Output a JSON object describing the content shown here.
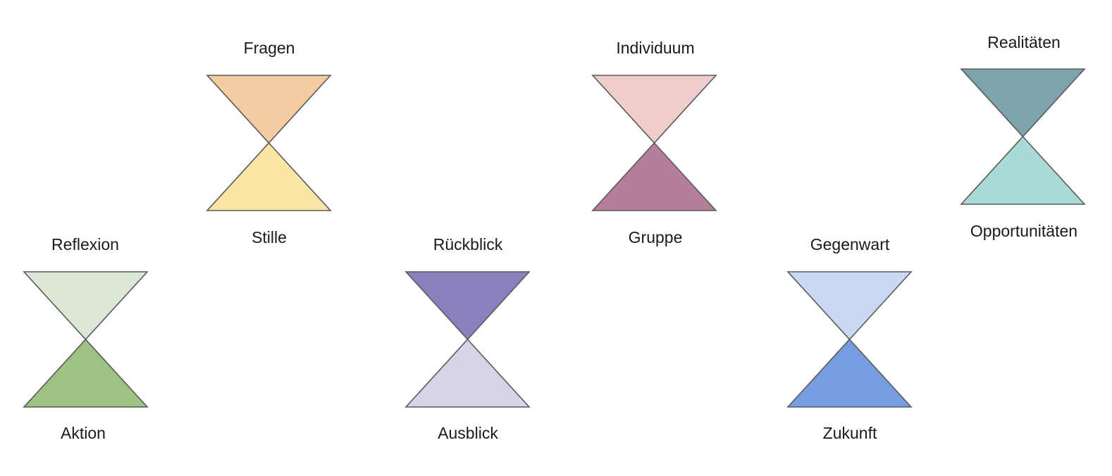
{
  "diagram": {
    "hourglasses": [
      {
        "id": "fragen-stille",
        "top_label": "Fragen",
        "bottom_label": "Stille",
        "top_color": "#F3CCA2",
        "bottom_color": "#FBE5A5"
      },
      {
        "id": "individuum-gruppe",
        "top_label": "Individuum",
        "bottom_label": "Gruppe",
        "top_color": "#EFCDCC",
        "bottom_color": "#B57E9B"
      },
      {
        "id": "realitaeten-opportunitaeten",
        "top_label": "Realitäten",
        "bottom_label": "Opportunitäten",
        "top_color": "#7DA3AD",
        "bottom_color": "#AADAD5"
      },
      {
        "id": "reflexion-aktion",
        "top_label": "Reflexion",
        "bottom_label": "Aktion",
        "top_color": "#DCE8D6",
        "bottom_color": "#9DC283"
      },
      {
        "id": "rueckblick-ausblick",
        "top_label": "Rückblick",
        "bottom_label": "Ausblick",
        "top_color": "#8B7FBD",
        "bottom_color": "#D8D4E8"
      },
      {
        "id": "gegenwart-zukunft",
        "top_label": "Gegenwart",
        "bottom_label": "Zukunft",
        "top_color": "#CAD8F4",
        "bottom_color": "#789CE2"
      }
    ],
    "stroke_color": "#5a5a5a"
  }
}
